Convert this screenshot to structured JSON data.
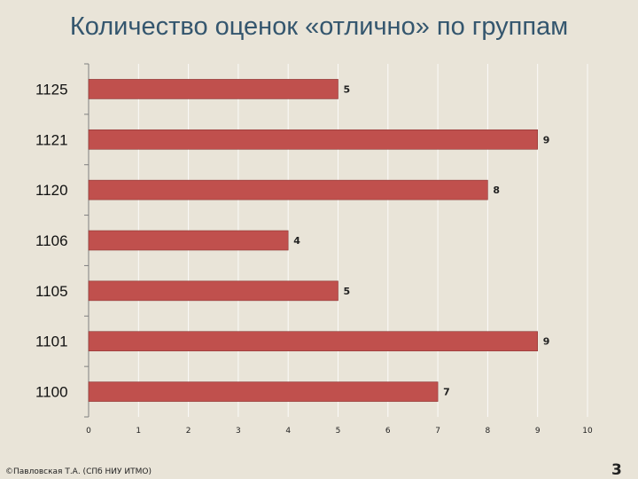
{
  "slide": {
    "title": "Количество оценок «отлично» по группам",
    "footer": "©Павловская Т.А. (СПб НИУ ИТМО)",
    "page_number": "3"
  },
  "colors": {
    "bar": "#c0504d",
    "bar_border": "#8c3533",
    "axis": "#7f7f7f",
    "grid": "#ffffff"
  },
  "chart_data": {
    "type": "bar",
    "orientation": "horizontal",
    "title": "",
    "xlabel": "",
    "ylabel": "",
    "categories": [
      "1125",
      "1121",
      "1120",
      "1106",
      "1105",
      "1101",
      "1100"
    ],
    "values": [
      5,
      9,
      8,
      4,
      5,
      9,
      7
    ],
    "data_labels": [
      "5",
      "9",
      "8",
      "4",
      "5",
      "9",
      "7"
    ],
    "xlim": [
      0,
      10
    ],
    "x_ticks": [
      "0",
      "1",
      "2",
      "3",
      "4",
      "5",
      "6",
      "7",
      "8",
      "9",
      "10"
    ],
    "grid": true,
    "legend": "none"
  }
}
